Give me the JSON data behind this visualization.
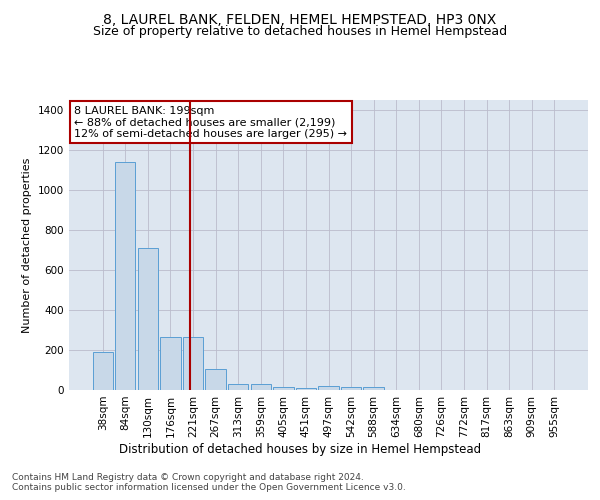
{
  "title": "8, LAUREL BANK, FELDEN, HEMEL HEMPSTEAD, HP3 0NX",
  "subtitle": "Size of property relative to detached houses in Hemel Hempstead",
  "xlabel": "Distribution of detached houses by size in Hemel Hempstead",
  "ylabel": "Number of detached properties",
  "categories": [
    "38sqm",
    "84sqm",
    "130sqm",
    "176sqm",
    "221sqm",
    "267sqm",
    "313sqm",
    "359sqm",
    "405sqm",
    "451sqm",
    "497sqm",
    "542sqm",
    "588sqm",
    "634sqm",
    "680sqm",
    "726sqm",
    "772sqm",
    "817sqm",
    "863sqm",
    "909sqm",
    "955sqm"
  ],
  "values": [
    190,
    1140,
    710,
    265,
    265,
    105,
    30,
    28,
    15,
    10,
    20,
    15,
    15,
    0,
    0,
    0,
    0,
    0,
    0,
    0,
    0
  ],
  "bar_color": "#c8d8e8",
  "bar_edge_color": "#5a9fd4",
  "vline_x": 3.88,
  "vline_color": "#aa0000",
  "annotation_text": "8 LAUREL BANK: 199sqm\n← 88% of detached houses are smaller (2,199)\n12% of semi-detached houses are larger (295) →",
  "annotation_box_color": "#ffffff",
  "annotation_box_edge": "#aa0000",
  "ylim": [
    0,
    1450
  ],
  "yticks": [
    0,
    200,
    400,
    600,
    800,
    1000,
    1200,
    1400
  ],
  "footer": "Contains HM Land Registry data © Crown copyright and database right 2024.\nContains public sector information licensed under the Open Government Licence v3.0.",
  "bg_color": "#dde6f0",
  "title_fontsize": 10,
  "subtitle_fontsize": 9,
  "ylabel_fontsize": 8,
  "tick_fontsize": 7.5,
  "annotation_fontsize": 8,
  "xlabel_fontsize": 8.5,
  "footer_fontsize": 6.5
}
